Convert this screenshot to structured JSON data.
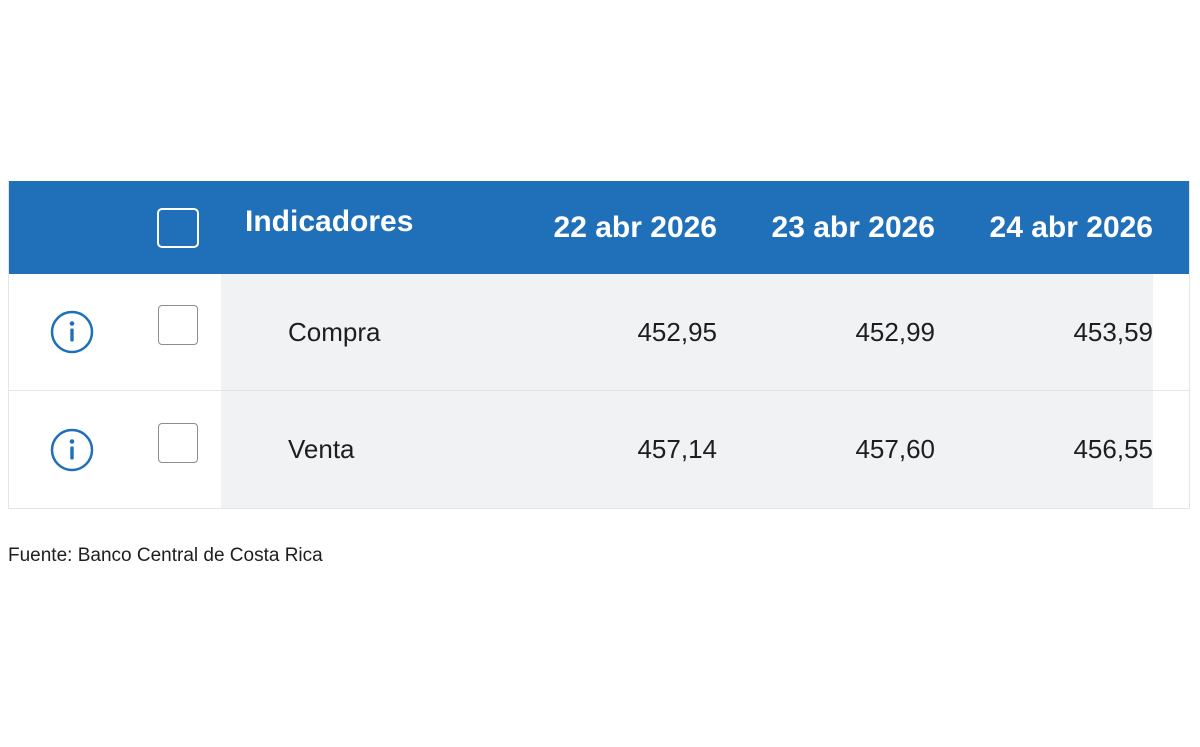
{
  "table": {
    "header": {
      "indicators_label": "Indicadores",
      "dates": [
        "22 abr 2026",
        "23 abr 2026",
        "24 abr 2026"
      ]
    },
    "rows": [
      {
        "label": "Compra",
        "values": [
          "452,95",
          "452,99",
          "453,59"
        ]
      },
      {
        "label": "Venta",
        "values": [
          "457,14",
          "457,60",
          "456,55"
        ]
      }
    ]
  },
  "footer": {
    "source": "Fuente: Banco Central de Costa Rica"
  },
  "colors": {
    "header_bg": "#1f70b8",
    "row_bg": "#f1f2f4",
    "icon_blue": "#1f70b8"
  },
  "icons": {
    "row_icon": "info-icon"
  }
}
